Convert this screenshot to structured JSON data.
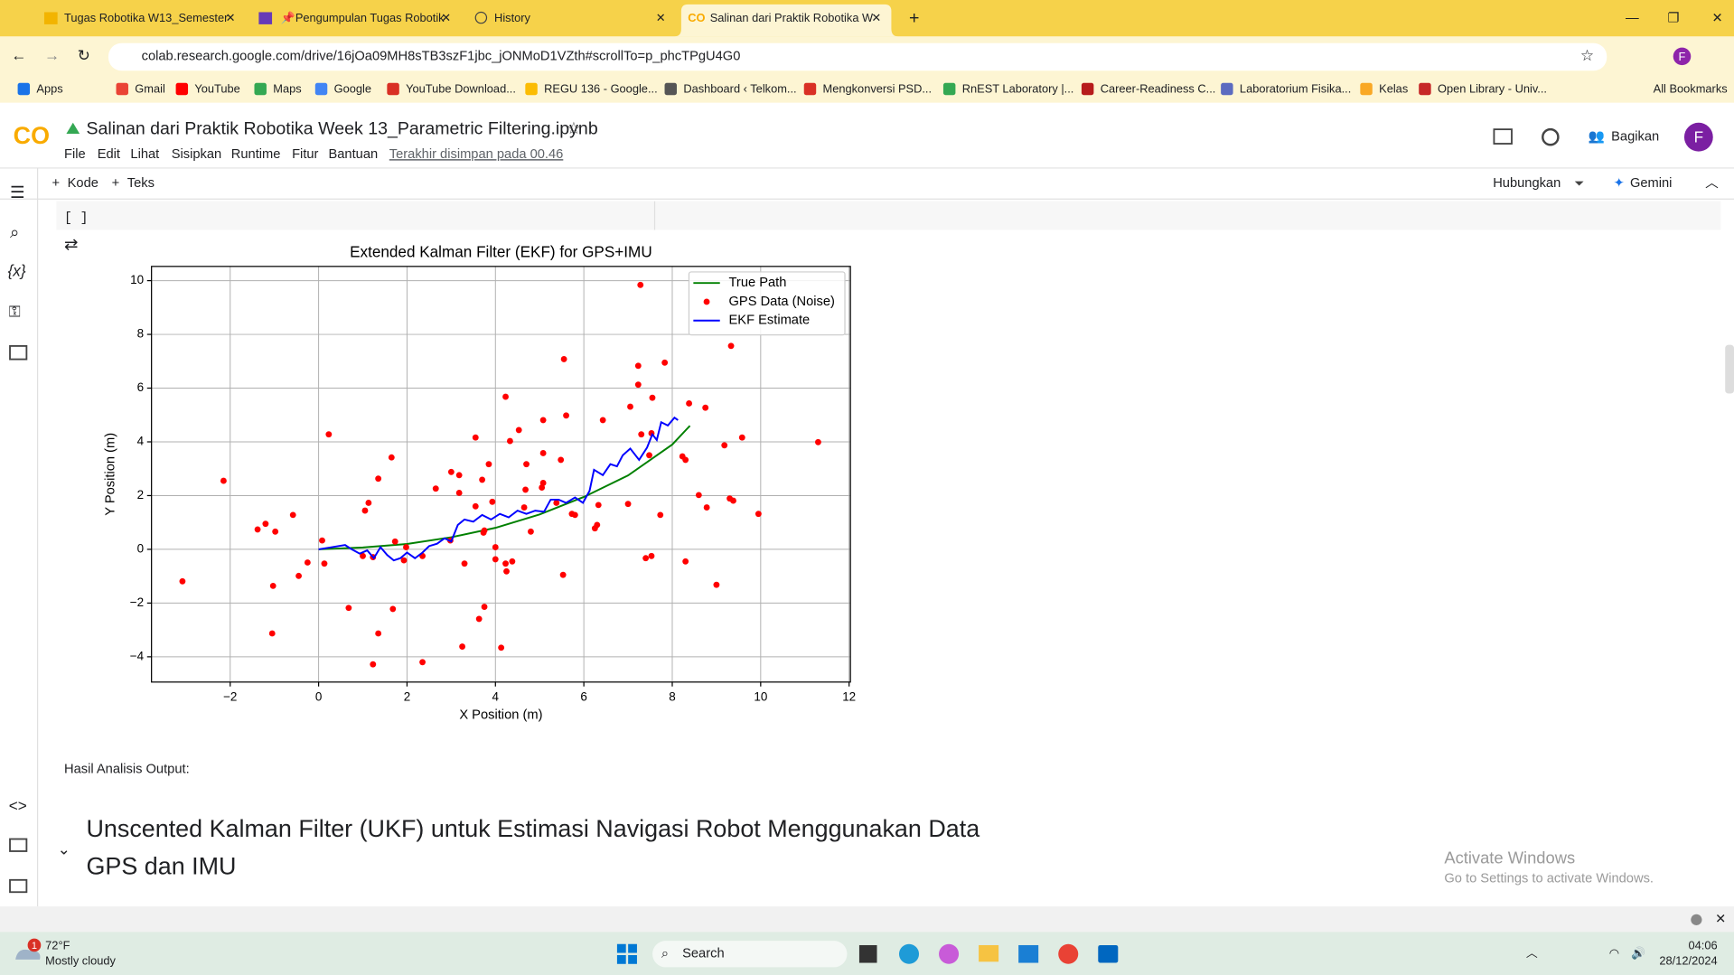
{
  "browser": {
    "tabs": [
      "Tugas Robotika W13_Semester",
      "📌Pengumpulan Tugas Robotik",
      "History",
      "Salinan dari Praktik Robotika W"
    ],
    "url": "colab.research.google.com/drive/16jOa09MH8sTB3szF1jbc_jONMoD1VZth#scrollTo=p_phcTPgU4G0",
    "bookmarks": [
      "Apps",
      "Gmail",
      "YouTube",
      "Maps",
      "Google",
      "YouTube Download...",
      "REGU 136 - Google...",
      "Dashboard ‹ Telkom...",
      "Mengkonversi PSD...",
      "RnEST Laboratory |...",
      "Career-Readiness C...",
      "Laboratorium Fisika...",
      "Kelas",
      "Open Library - Univ..."
    ],
    "all_bookmarks": "All Bookmarks",
    "profile": "F"
  },
  "colab": {
    "logo": "CO",
    "title": "Salinan dari Praktik Robotika Week 13_Parametric Filtering.ipynb",
    "menus": [
      "File",
      "Edit",
      "Lihat",
      "Sisipkan",
      "Runtime",
      "Fitur",
      "Bantuan"
    ],
    "last_saved": "Terakhir disimpan pada 00.46",
    "share": "Bagikan",
    "avatar": "F",
    "add_code": "Kode",
    "add_text": "Teks",
    "connect": "Hubungkan",
    "gemini": "Gemini",
    "cell_bracket": "[ ]",
    "output_text": "Hasil Analisis Output:",
    "heading": [
      "Unscented Kalman Filter (UKF) untuk Estimasi Navigasi Robot Menggunakan Data",
      "GPS dan IMU"
    ]
  },
  "watermark": {
    "title": "Activate Windows",
    "subtitle": "Go to Settings to activate Windows."
  },
  "taskbar": {
    "badge": "1",
    "temperature": "72°F",
    "weather": "Mostly cloudy",
    "search": "Search",
    "time": "04:06",
    "date": "28/12/2024"
  },
  "chart_data": {
    "type": "line",
    "title": "Extended Kalman Filter (EKF) for GPS+IMU",
    "x_label": "X Position (m)",
    "y_label": "Y Position (m)",
    "xlim": [
      -3.78,
      12.03
    ],
    "ylim": [
      -4.94,
      10.53
    ],
    "xticks": [
      {
        "value": -2,
        "label": "−2"
      },
      0,
      2,
      4,
      6,
      8,
      10,
      12
    ],
    "yticks": [
      {
        "value": -4,
        "label": "−4"
      },
      {
        "value": -2,
        "label": "−2"
      },
      0,
      2,
      4,
      6,
      8,
      10
    ],
    "grid": true,
    "legend": "upper right",
    "series": [
      {
        "name": "True Path",
        "color": "green",
        "type": "line",
        "x": [
          0,
          1,
          2,
          3,
          4,
          5,
          6,
          7,
          8,
          8.4
        ],
        "values": [
          0,
          0.07,
          0.2,
          0.45,
          0.8,
          1.3,
          1.95,
          2.75,
          3.9,
          4.6
        ]
      },
      {
        "name": "GPS Data (Noise)",
        "color": "red",
        "type": "scatter",
        "x": [
          7.28,
          9.33,
          5.55,
          7.23,
          7.83,
          7.23,
          4.23,
          7.55,
          8.38,
          7.05,
          8.75,
          5.6,
          5.08,
          6.43,
          4.53,
          0.23,
          3.55,
          9.58,
          11.3,
          4.33,
          7.3,
          7.53,
          9.18,
          1.65,
          5.08,
          8.23,
          7.48,
          8.3,
          5.48,
          4.7,
          3.85,
          3.0,
          3.18,
          1.35,
          3.7,
          -2.15,
          5.08,
          2.65,
          5.05,
          4.68,
          3.18,
          8.6,
          9.3,
          9.38,
          3.93,
          1.13,
          5.38,
          7.0,
          6.33,
          3.55,
          4.65,
          8.78,
          1.05,
          5.73,
          5.8,
          7.73,
          9.95,
          -0.58,
          -1.2,
          -1.38,
          -0.98,
          6.3,
          6.25,
          3.75,
          4.8,
          3.73,
          0.08,
          1.73,
          2.98,
          4.0,
          1.98,
          1.0,
          1.23,
          2.35,
          1.93,
          4.0,
          7.53,
          7.4,
          -0.25,
          0.13,
          3.3,
          4.38,
          4.23,
          8.3,
          4.25,
          5.53,
          -0.45,
          -1.03,
          -3.08,
          9.0,
          0.68,
          1.68,
          3.75,
          3.63,
          -1.05,
          1.35,
          3.25,
          4.13,
          1.23,
          2.35
        ],
        "values": [
          9.84,
          7.57,
          7.08,
          6.83,
          6.95,
          6.13,
          5.68,
          5.64,
          5.43,
          5.31,
          5.27,
          4.98,
          4.81,
          4.81,
          4.44,
          4.28,
          4.16,
          4.16,
          3.99,
          4.03,
          4.28,
          4.32,
          3.87,
          3.42,
          3.58,
          3.46,
          3.5,
          3.33,
          3.33,
          3.17,
          3.17,
          2.88,
          2.76,
          2.63,
          2.59,
          2.55,
          2.47,
          2.26,
          2.3,
          2.22,
          2.1,
          2.02,
          1.89,
          1.81,
          1.77,
          1.73,
          1.73,
          1.69,
          1.65,
          1.6,
          1.56,
          1.56,
          1.44,
          1.32,
          1.28,
          1.28,
          1.32,
          1.28,
          0.95,
          0.74,
          0.66,
          0.91,
          0.78,
          0.7,
          0.66,
          0.62,
          0.33,
          0.29,
          0.33,
          0.08,
          0.08,
          -0.25,
          -0.29,
          -0.25,
          -0.41,
          -0.37,
          -0.25,
          -0.33,
          -0.49,
          -0.53,
          -0.53,
          -0.45,
          -0.53,
          -0.45,
          -0.82,
          -0.95,
          -0.99,
          -1.36,
          -1.19,
          -1.32,
          -2.18,
          -2.22,
          -2.14,
          -2.59,
          -3.13,
          -3.13,
          -3.62,
          -3.66,
          -4.28,
          -4.2
        ]
      },
      {
        "name": "EKF Estimate",
        "color": "blue",
        "type": "line",
        "x": [
          0,
          0.3,
          0.6,
          0.75,
          0.93,
          1.1,
          1.25,
          1.4,
          1.55,
          1.7,
          1.85,
          2.0,
          2.18,
          2.35,
          2.5,
          2.68,
          2.85,
          3.0,
          3.15,
          3.3,
          3.5,
          3.7,
          3.9,
          4.1,
          4.3,
          4.5,
          4.7,
          4.9,
          5.1,
          5.25,
          5.43,
          5.6,
          5.8,
          5.98,
          6.13,
          6.23,
          6.43,
          6.6,
          6.75,
          6.88,
          7.05,
          7.25,
          7.43,
          7.55,
          7.65,
          7.75,
          7.9,
          8.05,
          8.13
        ],
        "values": [
          0,
          0.08,
          0.16,
          0,
          -0.16,
          -0.04,
          -0.33,
          0.08,
          -0.21,
          -0.41,
          -0.33,
          -0.12,
          -0.33,
          -0.12,
          0.12,
          0.21,
          0.41,
          0.29,
          0.91,
          1.11,
          1.03,
          1.28,
          1.11,
          1.32,
          1.19,
          1.44,
          1.32,
          1.44,
          1.4,
          1.85,
          1.85,
          1.73,
          1.93,
          1.73,
          2.18,
          2.96,
          2.76,
          3.17,
          3.09,
          3.5,
          3.75,
          3.33,
          3.79,
          4.28,
          4.07,
          4.73,
          4.61,
          4.9,
          4.81
        ]
      }
    ]
  }
}
